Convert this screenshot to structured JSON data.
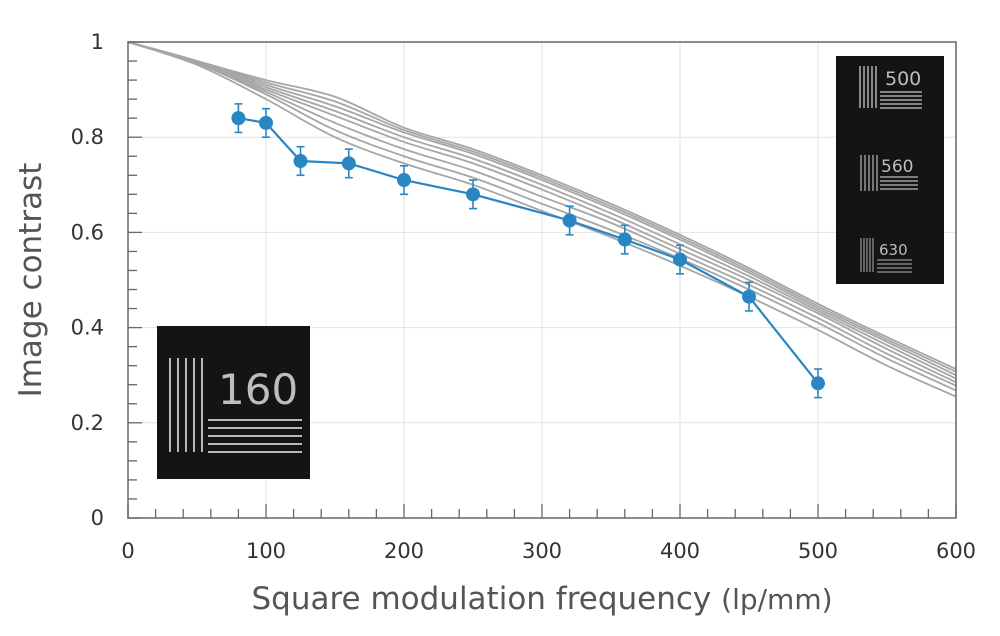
{
  "chart_data": {
    "type": "line",
    "xlabel": "Square modulation frequency",
    "xlabel_unit": "(lp/mm)",
    "ylabel": "Image contrast",
    "xlim": [
      0,
      600
    ],
    "ylim": [
      0,
      1
    ],
    "x_ticks": [
      "0",
      "100",
      "200",
      "300",
      "400",
      "500",
      "600"
    ],
    "y_ticks": [
      "0",
      "0.2",
      "0.4",
      "0.6",
      "0.8",
      "1"
    ],
    "grid": true,
    "colors": {
      "measured": "#2a86c2",
      "reference": "#a6a6a6"
    },
    "series": [
      {
        "role": "measured",
        "x": [
          80,
          100,
          125,
          160,
          200,
          250,
          320,
          360,
          400,
          450,
          500
        ],
        "values": [
          0.84,
          0.83,
          0.75,
          0.745,
          0.71,
          0.68,
          0.625,
          0.585,
          0.543,
          0.465,
          0.283
        ],
        "error": [
          0.03,
          0.03,
          0.03,
          0.03,
          0.03,
          0.03,
          0.03,
          0.03,
          0.03,
          0.03,
          0.03
        ]
      }
    ],
    "reference_curves": [
      {
        "x": [
          0,
          50,
          100,
          150,
          200,
          250,
          300,
          350,
          400,
          450,
          500,
          550,
          600
        ],
        "values": [
          1.0,
          0.96,
          0.92,
          0.885,
          0.82,
          0.775,
          0.72,
          0.66,
          0.595,
          0.525,
          0.45,
          0.38,
          0.313
        ]
      },
      {
        "x": [
          0,
          50,
          100,
          150,
          200,
          250,
          300,
          350,
          400,
          450,
          500,
          550,
          600
        ],
        "values": [
          1.0,
          0.96,
          0.915,
          0.875,
          0.815,
          0.77,
          0.715,
          0.655,
          0.59,
          0.52,
          0.445,
          0.375,
          0.307
        ]
      },
      {
        "x": [
          0,
          50,
          100,
          150,
          200,
          250,
          300,
          350,
          400,
          450,
          500,
          550,
          600
        ],
        "values": [
          1.0,
          0.96,
          0.91,
          0.865,
          0.81,
          0.765,
          0.71,
          0.65,
          0.585,
          0.515,
          0.44,
          0.37,
          0.3
        ]
      },
      {
        "x": [
          0,
          50,
          100,
          150,
          200,
          250,
          300,
          350,
          400,
          450,
          500,
          550,
          600
        ],
        "values": [
          1.0,
          0.958,
          0.905,
          0.855,
          0.8,
          0.755,
          0.7,
          0.64,
          0.575,
          0.508,
          0.435,
          0.363,
          0.293
        ]
      },
      {
        "x": [
          0,
          50,
          100,
          150,
          200,
          250,
          300,
          350,
          400,
          450,
          500,
          550,
          600
        ],
        "values": [
          1.0,
          0.957,
          0.9,
          0.845,
          0.79,
          0.745,
          0.69,
          0.63,
          0.565,
          0.5,
          0.43,
          0.355,
          0.285
        ]
      },
      {
        "x": [
          0,
          50,
          100,
          150,
          200,
          250,
          300,
          350,
          400,
          450,
          500,
          550,
          600
        ],
        "values": [
          1.0,
          0.955,
          0.895,
          0.83,
          0.775,
          0.73,
          0.675,
          0.62,
          0.555,
          0.49,
          0.42,
          0.345,
          0.278
        ]
      },
      {
        "x": [
          0,
          50,
          100,
          150,
          200,
          250,
          300,
          350,
          400,
          450,
          500,
          550,
          600
        ],
        "values": [
          1.0,
          0.955,
          0.89,
          0.815,
          0.76,
          0.715,
          0.66,
          0.605,
          0.545,
          0.48,
          0.41,
          0.335,
          0.268
        ]
      },
      {
        "x": [
          0,
          50,
          100,
          150,
          200,
          250,
          300,
          350,
          400,
          450,
          500,
          550,
          600
        ],
        "values": [
          1.0,
          0.952,
          0.88,
          0.8,
          0.745,
          0.7,
          0.645,
          0.59,
          0.53,
          0.465,
          0.395,
          0.32,
          0.255
        ]
      }
    ],
    "insets": [
      {
        "labels": [
          "160"
        ]
      },
      {
        "labels": [
          "500",
          "560",
          "630"
        ]
      }
    ]
  }
}
